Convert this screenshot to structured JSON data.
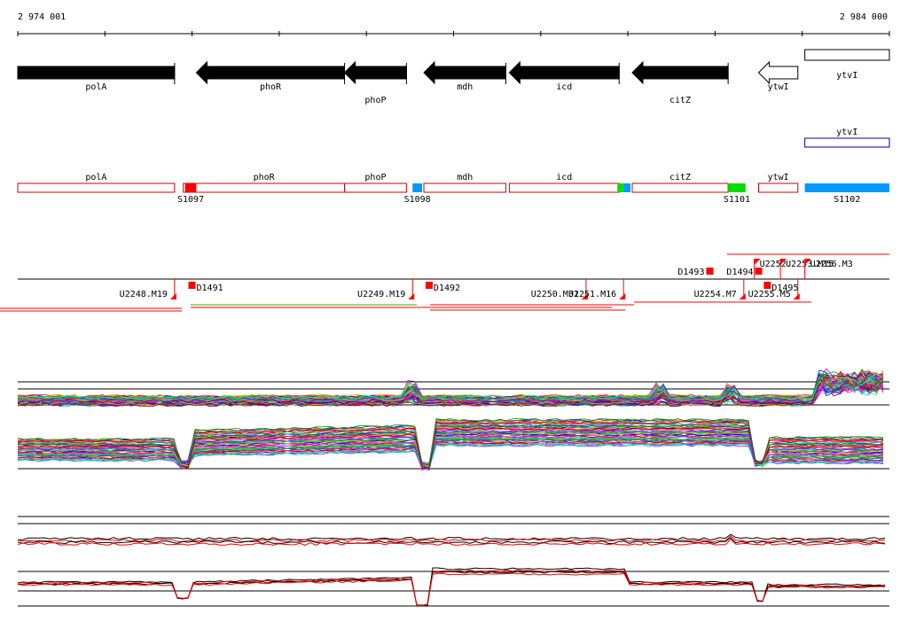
{
  "ruler": {
    "start_label": "2 974 001",
    "end_label": "2 984 000",
    "start": 2974001,
    "end": 2984000
  },
  "genes": [
    {
      "name": "polA",
      "strand": "+",
      "start": 2974001,
      "end": 2975800
    },
    {
      "name": "phoR",
      "strand": "-",
      "start": 2976050,
      "end": 2977750
    },
    {
      "name": "phoP",
      "strand": "-",
      "start": 2977750,
      "end": 2978460
    },
    {
      "name": "mdh",
      "strand": "-",
      "start": 2978660,
      "end": 2979600
    },
    {
      "name": "icd",
      "strand": "-",
      "start": 2979640,
      "end": 2980900
    },
    {
      "name": "citZ",
      "strand": "-",
      "start": 2981050,
      "end": 2982150
    },
    {
      "name": "ytwI",
      "strand": "-",
      "start": 2982500,
      "end": 2982950
    },
    {
      "name": "ytvI",
      "strand": "+",
      "start": 2983030,
      "end": 2984000
    }
  ],
  "annotation_track": [
    {
      "name": "ytvI",
      "start": 2983030,
      "end": 2984000
    }
  ],
  "segments": [
    {
      "label": "polA",
      "start": 2974001,
      "end": 2975800
    },
    {
      "label": "phoR",
      "start": 2975900,
      "end": 2977750
    },
    {
      "label": "phoP",
      "start": 2977750,
      "end": 2978460
    },
    {
      "label": "mdh",
      "start": 2978660,
      "end": 2979600
    },
    {
      "label": "icd",
      "start": 2979640,
      "end": 2980900
    },
    {
      "label": "citZ",
      "start": 2981050,
      "end": 2982150
    },
    {
      "label": "ytwI",
      "start": 2982500,
      "end": 2982950
    }
  ],
  "regions": [
    {
      "label": "S1097",
      "start": 2975920,
      "end": 2976050,
      "color": "#ff0000"
    },
    {
      "label": "S1098",
      "start": 2978530,
      "end": 2978640,
      "color": "#0099ff"
    },
    {
      "label": "",
      "start": 2980880,
      "end": 2980950,
      "color": "#00dd00"
    },
    {
      "label": "",
      "start": 2980950,
      "end": 2981030,
      "color": "#0099ff"
    },
    {
      "label": "S1101",
      "start": 2982150,
      "end": 2982350,
      "color": "#00dd00"
    },
    {
      "label": "S1102",
      "start": 2983030,
      "end": 2984000,
      "color": "#0099ff"
    }
  ],
  "transcripts": {
    "upper": [
      {
        "label": "D1493",
        "pos": 2981940,
        "side": "left"
      },
      {
        "label": "D1494",
        "pos": 2982500,
        "side": "left"
      },
      {
        "label": "U2252.",
        "pos": 2982450,
        "side": "right"
      },
      {
        "label": "U2253.M15",
        "pos": 2982750,
        "side": "right"
      },
      {
        "label": "U2256.M3",
        "pos": 2983030,
        "side": "right"
      }
    ],
    "lower": [
      {
        "label": "U2248.M19",
        "pos": 2975800
      },
      {
        "label": "D1491",
        "pos": 2976000
      },
      {
        "label": "U2249.M19",
        "pos": 2978530
      },
      {
        "label": "D1492",
        "pos": 2978720
      },
      {
        "label": "U2250.M31",
        "pos": 2980520
      },
      {
        "label": "U2251.M16",
        "pos": 2980950
      },
      {
        "label": "U2254.M7",
        "pos": 2982330
      },
      {
        "label": "D1495",
        "pos": 2982600
      },
      {
        "label": "U2255.M5",
        "pos": 2982950
      }
    ]
  },
  "expression_panels": [
    {
      "name": "expression-upper",
      "lines": 60
    },
    {
      "name": "expression-lower",
      "lines": 4
    }
  ],
  "colors": {
    "gene_fill": "#000000",
    "segment_border": "#cc0000",
    "annotation_border": "#0000aa",
    "marker": "#ff0000",
    "axis": "#000000"
  }
}
